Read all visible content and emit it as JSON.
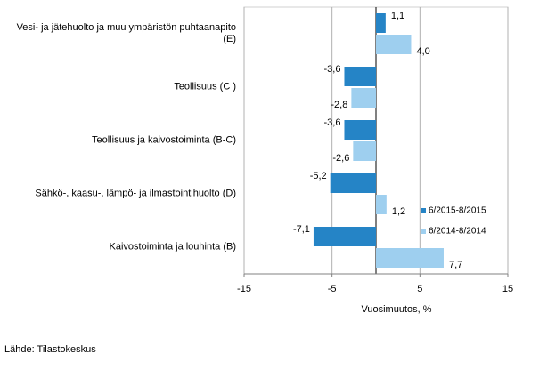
{
  "chart_data": {
    "type": "bar",
    "orientation": "horizontal",
    "categories": [
      "Vesi- ja jätehuolto ja muu ympäristön puhtaanapito\n(E)",
      "Teollisuus (C )",
      "Teollisuus ja kaivostoiminta (B-C)",
      "Sähkö-, kaasu-, lämpö- ja ilmastointihuolto (D)",
      "Kaivostoiminta ja louhinta (B)"
    ],
    "series": [
      {
        "name": "6/2015-8/2015",
        "color": "#2584c6",
        "values": [
          1.1,
          -3.6,
          -3.6,
          -5.2,
          -7.1
        ],
        "value_labels": [
          "1,1",
          "-3,6",
          "-3,6",
          "-5,2",
          "-7,1"
        ]
      },
      {
        "name": "6/2014-8/2014",
        "color": "#9ecfef",
        "values": [
          4.0,
          -2.8,
          -2.6,
          1.2,
          7.7
        ],
        "value_labels": [
          "4,0",
          "-2,8",
          "-2,6",
          "1,2",
          "7,7"
        ]
      }
    ],
    "xlim": [
      -15,
      15
    ],
    "xticks": [
      -15,
      -5,
      5,
      15
    ],
    "grid": true,
    "xlabel": "Vuosimuutos, %",
    "source": "Lähde: Tilastokeskus",
    "legend": "lower right"
  }
}
